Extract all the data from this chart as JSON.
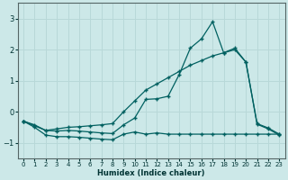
{
  "xlabel": "Humidex (Indice chaleur)",
  "line_color": "#006060",
  "bg_color": "#cce8e8",
  "grid_color": "#b8d8d8",
  "xlim": [
    -0.5,
    23.5
  ],
  "ylim": [
    -1.5,
    3.5
  ],
  "yticks": [
    -1,
    0,
    1,
    2,
    3
  ],
  "xticks": [
    0,
    1,
    2,
    3,
    4,
    5,
    6,
    7,
    8,
    9,
    10,
    11,
    12,
    13,
    14,
    15,
    16,
    17,
    18,
    19,
    20,
    21,
    22,
    23
  ],
  "line1_x": [
    0,
    1,
    2,
    3,
    4,
    5,
    6,
    7,
    8,
    9,
    10,
    11,
    12,
    13,
    14,
    15,
    16,
    17,
    18,
    19,
    20,
    21,
    22,
    23
  ],
  "line1_y": [
    -0.3,
    -0.5,
    -0.75,
    -0.8,
    -0.8,
    -0.82,
    -0.85,
    -0.88,
    -0.9,
    -0.72,
    -0.65,
    -0.72,
    -0.68,
    -0.72,
    -0.72,
    -0.72,
    -0.72,
    -0.72,
    -0.72,
    -0.72,
    -0.72,
    -0.72,
    -0.72,
    -0.72
  ],
  "line2_x": [
    0,
    2,
    3,
    4,
    5,
    6,
    7,
    8,
    9,
    10,
    11,
    12,
    13,
    14,
    15,
    16,
    17,
    18,
    19,
    20,
    21,
    22,
    23
  ],
  "line2_y": [
    -0.3,
    -0.6,
    -0.55,
    -0.5,
    -0.48,
    -0.45,
    -0.42,
    -0.38,
    0.0,
    0.35,
    0.7,
    0.9,
    1.1,
    1.3,
    1.5,
    1.65,
    1.8,
    1.9,
    2.0,
    1.6,
    -0.4,
    -0.55,
    -0.75
  ],
  "line3_x": [
    0,
    1,
    2,
    3,
    4,
    5,
    6,
    7,
    8,
    9,
    10,
    11,
    12,
    13,
    14,
    15,
    16,
    17,
    18,
    19,
    20,
    21,
    22,
    23
  ],
  "line3_y": [
    -0.3,
    -0.42,
    -0.6,
    -0.62,
    -0.6,
    -0.62,
    -0.65,
    -0.68,
    -0.7,
    -0.42,
    -0.2,
    0.4,
    0.42,
    0.5,
    1.2,
    2.05,
    2.35,
    2.9,
    1.9,
    2.05,
    1.6,
    -0.38,
    -0.52,
    -0.72
  ]
}
